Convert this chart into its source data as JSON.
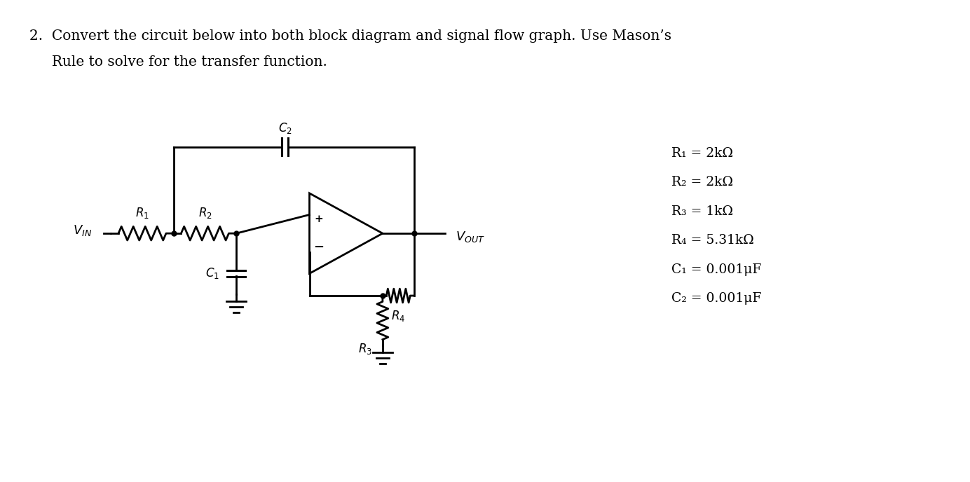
{
  "title_line1": "2.  Convert the circuit below into both block diagram and signal flow graph. Use Mason’s",
  "title_line2": "     Rule to solve for the transfer function.",
  "component_values": [
    "R₁ = 2kΩ",
    "R₂ = 2kΩ",
    "R₃ = 1kΩ",
    "R₄ = 5.31kΩ",
    "C₁ = 0.001μF",
    "C₂ = 0.001μF"
  ],
  "background_color": "#ffffff",
  "text_color": "#000000",
  "line_color": "#000000"
}
